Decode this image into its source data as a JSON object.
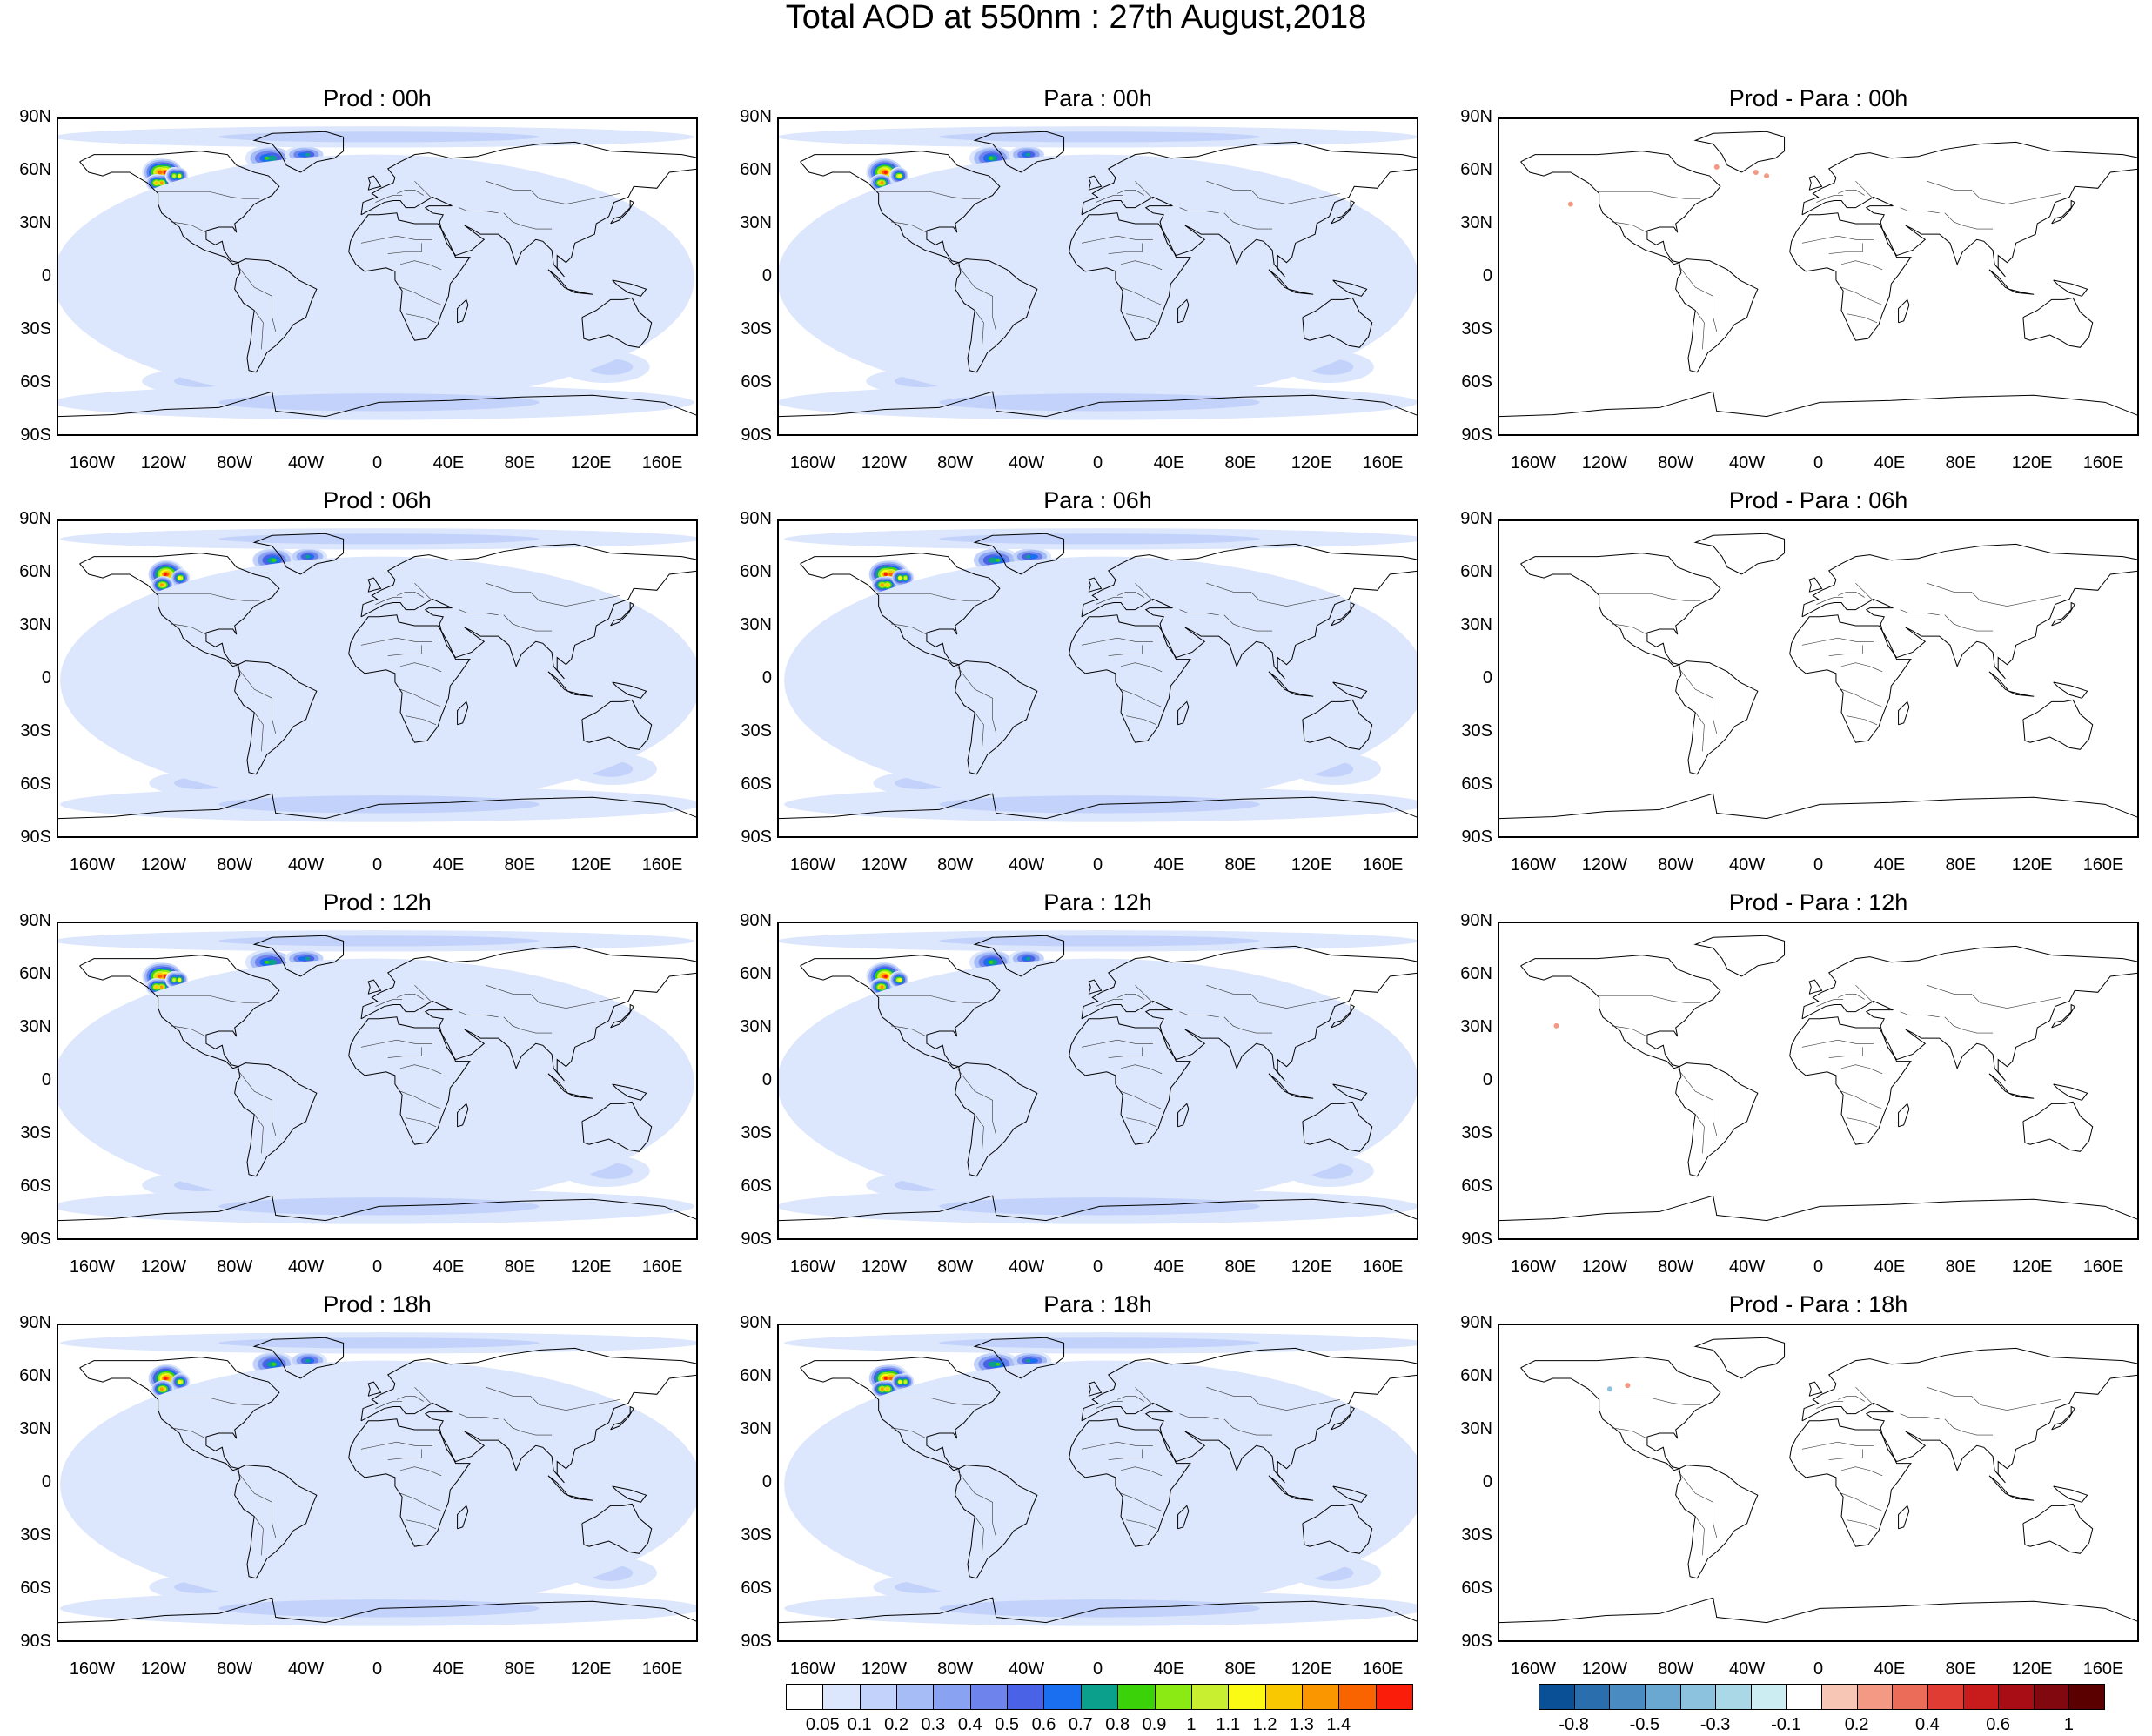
{
  "title": "Total AOD at 550nm : 27th August,2018",
  "panels": [
    {
      "title": "Prod : 00h",
      "kind": "field",
      "variant": 0
    },
    {
      "title": "Para : 00h",
      "kind": "field",
      "variant": 1
    },
    {
      "title": "Prod - Para : 00h",
      "kind": "diff",
      "variant": 0
    },
    {
      "title": "Prod : 06h",
      "kind": "field",
      "variant": 2
    },
    {
      "title": "Para : 06h",
      "kind": "field",
      "variant": 3
    },
    {
      "title": "Prod - Para : 06h",
      "kind": "diff",
      "variant": 1
    },
    {
      "title": "Prod : 12h",
      "kind": "field",
      "variant": 4
    },
    {
      "title": "Para : 12h",
      "kind": "field",
      "variant": 5
    },
    {
      "title": "Prod - Para : 12h",
      "kind": "diff",
      "variant": 2
    },
    {
      "title": "Prod : 18h",
      "kind": "field",
      "variant": 6
    },
    {
      "title": "Para : 18h",
      "kind": "field",
      "variant": 7
    },
    {
      "title": "Prod - Para : 18h",
      "kind": "diff",
      "variant": 3
    }
  ],
  "lat_labels": [
    "90N",
    "60N",
    "30N",
    "0",
    "30S",
    "60S",
    "90S"
  ],
  "lon_labels": [
    "160W",
    "120W",
    "80W",
    "40W",
    "0",
    "40E",
    "80E",
    "120E",
    "160E"
  ],
  "colorbar_aod": {
    "labels": [
      "0.05",
      "0.1",
      "0.2",
      "0.3",
      "0.4",
      "0.5",
      "0.6",
      "0.7",
      "0.8",
      "0.9",
      "1",
      "1.1",
      "1.2",
      "1.3",
      "1.4"
    ],
    "colors": [
      "#ffffff",
      "#dce6fc",
      "#c2d2fa",
      "#a6bcf6",
      "#8aa2f2",
      "#6e84ec",
      "#4a62e6",
      "#1a6ef0",
      "#0aa08c",
      "#3cd20a",
      "#8cea14",
      "#c8f030",
      "#fafa14",
      "#fac800",
      "#fa9600",
      "#fa6400",
      "#fa1e0a"
    ]
  },
  "colorbar_diff": {
    "labels": [
      "-0.8",
      "-0.5",
      "-0.3",
      "-0.1",
      "0.2",
      "0.4",
      "0.6",
      "1"
    ],
    "colors": [
      "#0a5096",
      "#2a6eae",
      "#4a8cc2",
      "#6aa8d2",
      "#8cc2de",
      "#aad8e6",
      "#cceef2",
      "#ffffff",
      "#f8c6b4",
      "#f49a84",
      "#ec6c5a",
      "#e03c34",
      "#c81c1c",
      "#a80c14",
      "#820810",
      "#5a0000"
    ]
  }
}
